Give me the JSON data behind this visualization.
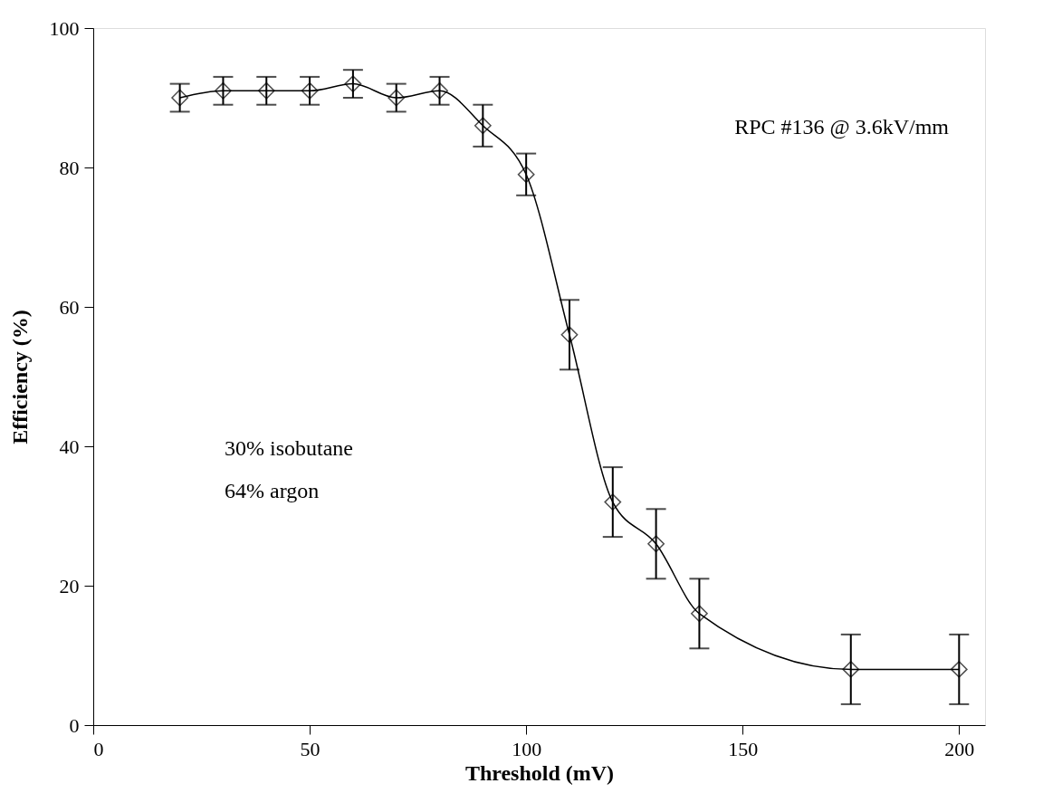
{
  "chart_data": {
    "type": "line",
    "xlabel": "Threshold (mV)",
    "ylabel": "Efficiency (%)",
    "x": [
      20,
      30,
      40,
      50,
      60,
      70,
      80,
      90,
      100,
      110,
      120,
      130,
      140,
      175,
      200
    ],
    "series": [
      {
        "color": "#000000",
        "values": [
          90,
          91,
          91,
          91,
          92,
          90,
          91,
          86,
          79,
          56,
          32,
          26,
          16,
          8,
          8
        ],
        "errors": [
          2,
          2,
          2,
          2,
          2,
          2,
          2,
          3,
          3,
          5,
          5,
          5,
          5,
          5,
          5
        ]
      }
    ],
    "xlim": [
      0,
      206
    ],
    "xticks": [
      0,
      50,
      100,
      150,
      200
    ],
    "ylim": [
      0,
      100
    ],
    "yticks": [
      0,
      20,
      40,
      60,
      80,
      100
    ],
    "marker": "diamond",
    "line_style": "solid",
    "grid": false,
    "annotations": [
      "RPC #136 @ 3.6kV/mm",
      "30% isobutane",
      "64% argon"
    ]
  }
}
